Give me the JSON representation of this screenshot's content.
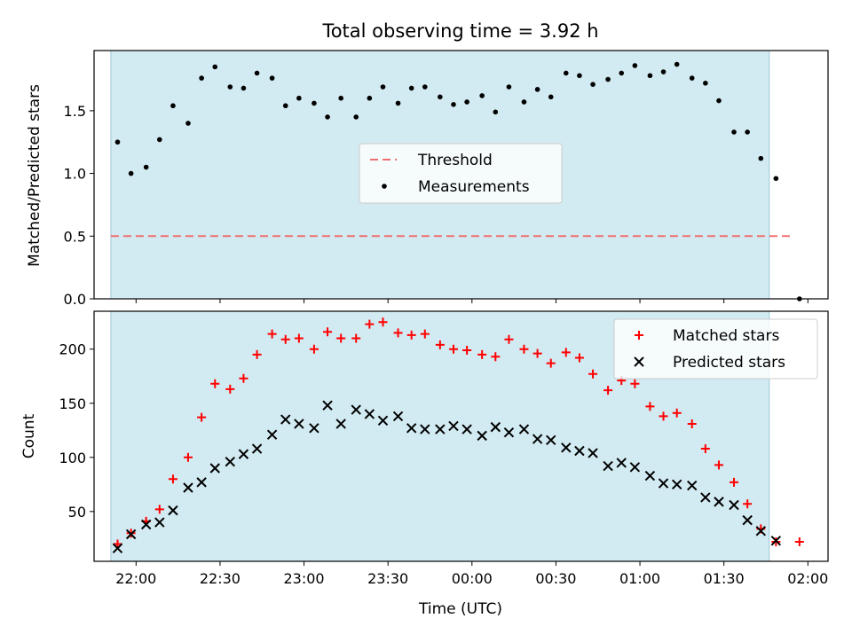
{
  "chart_data": {
    "title": "Total observing time = 3.92 h",
    "xlabel": "Time (UTC)",
    "x_ticks": [
      "22:00",
      "22:30",
      "23:00",
      "23:30",
      "00:00",
      "00:30",
      "01:00",
      "01:30",
      "02:00"
    ],
    "top": {
      "type": "scatter",
      "ylabel": "Matched/Predicted stars",
      "ylim": [
        0,
        1.98
      ],
      "y_ticks": [
        "0.0",
        "0.5",
        "1.0",
        "1.5"
      ],
      "legend": {
        "placement": "center",
        "entries": [
          "Threshold",
          "Measurements"
        ]
      },
      "threshold": {
        "name": "Threshold",
        "value": 0.5,
        "x_start": 21.85,
        "x_end": 25.9,
        "color": "#f07070"
      },
      "series": [
        {
          "name": "Measurements",
          "x": [
            21.89,
            21.97,
            22.06,
            22.14,
            22.22,
            22.31,
            22.39,
            22.47,
            22.56,
            22.64,
            22.72,
            22.81,
            22.89,
            22.97,
            23.06,
            23.14,
            23.22,
            23.31,
            23.39,
            23.47,
            23.56,
            23.64,
            23.72,
            23.81,
            23.89,
            23.97,
            24.06,
            24.14,
            24.22,
            24.31,
            24.39,
            24.47,
            24.56,
            24.64,
            24.72,
            24.81,
            24.89,
            24.97,
            25.06,
            25.14,
            25.22,
            25.31,
            25.39,
            25.47,
            25.56,
            25.64,
            25.72,
            25.81,
            25.95
          ],
          "values": [
            1.25,
            1.0,
            1.05,
            1.27,
            1.54,
            1.4,
            1.76,
            1.85,
            1.69,
            1.68,
            1.8,
            1.76,
            1.54,
            1.6,
            1.56,
            1.45,
            1.6,
            1.45,
            1.6,
            1.69,
            1.56,
            1.68,
            1.69,
            1.61,
            1.55,
            1.57,
            1.62,
            1.49,
            1.69,
            1.57,
            1.67,
            1.61,
            1.8,
            1.78,
            1.71,
            1.75,
            1.8,
            1.86,
            1.78,
            1.81,
            1.87,
            1.76,
            1.72,
            1.58,
            1.33,
            1.33,
            1.12,
            0.96,
            0.0
          ]
        }
      ]
    },
    "bottom": {
      "type": "scatter",
      "ylabel": "Count",
      "ylim": [
        4,
        235
      ],
      "y_ticks": [
        "50",
        "100",
        "150",
        "200"
      ],
      "legend": {
        "placement": "top-right",
        "entries": [
          "Matched stars",
          "Predicted stars"
        ]
      },
      "series": [
        {
          "name": "Matched stars",
          "color": "#ff0000",
          "x": [
            21.89,
            21.97,
            22.06,
            22.14,
            22.22,
            22.31,
            22.39,
            22.47,
            22.56,
            22.64,
            22.72,
            22.81,
            22.89,
            22.97,
            23.06,
            23.14,
            23.22,
            23.31,
            23.39,
            23.47,
            23.56,
            23.64,
            23.72,
            23.81,
            23.89,
            23.97,
            24.06,
            24.14,
            24.22,
            24.31,
            24.39,
            24.47,
            24.56,
            24.64,
            24.72,
            24.81,
            24.89,
            24.97,
            25.06,
            25.14,
            25.22,
            25.31,
            25.39,
            25.47,
            25.56,
            25.64,
            25.72,
            25.81,
            25.95
          ],
          "values": [
            20,
            30,
            41,
            52,
            80,
            100,
            137,
            168,
            163,
            173,
            195,
            214,
            209,
            210,
            200,
            216,
            210,
            210,
            223,
            225,
            215,
            213,
            214,
            204,
            200,
            199,
            195,
            193,
            209,
            200,
            196,
            187,
            197,
            192,
            177,
            162,
            171,
            168,
            147,
            138,
            141,
            131,
            108,
            93,
            77,
            57,
            34,
            22,
            22
          ]
        },
        {
          "name": "Predicted stars",
          "color": "#000000",
          "x": [
            21.89,
            21.97,
            22.06,
            22.14,
            22.22,
            22.31,
            22.39,
            22.47,
            22.56,
            22.64,
            22.72,
            22.81,
            22.89,
            22.97,
            23.06,
            23.14,
            23.22,
            23.31,
            23.39,
            23.47,
            23.56,
            23.64,
            23.72,
            23.81,
            23.89,
            23.97,
            24.06,
            24.14,
            24.22,
            24.31,
            24.39,
            24.47,
            24.56,
            24.64,
            24.72,
            24.81,
            24.89,
            24.97,
            25.06,
            25.14,
            25.22,
            25.31,
            25.39,
            25.47,
            25.56,
            25.64,
            25.72,
            25.81
          ],
          "values": [
            16,
            29,
            38,
            40,
            51,
            72,
            77,
            90,
            96,
            103,
            108,
            121,
            135,
            131,
            127,
            148,
            131,
            144,
            140,
            134,
            138,
            127,
            126,
            126,
            129,
            126,
            120,
            128,
            123,
            126,
            117,
            116,
            109,
            106,
            104,
            92,
            95,
            91,
            83,
            76,
            75,
            74,
            63,
            59,
            56,
            42,
            32,
            23
          ]
        }
      ]
    },
    "observing_window": {
      "x_start": 21.85,
      "x_end": 25.77,
      "color": "#add8e6"
    }
  }
}
